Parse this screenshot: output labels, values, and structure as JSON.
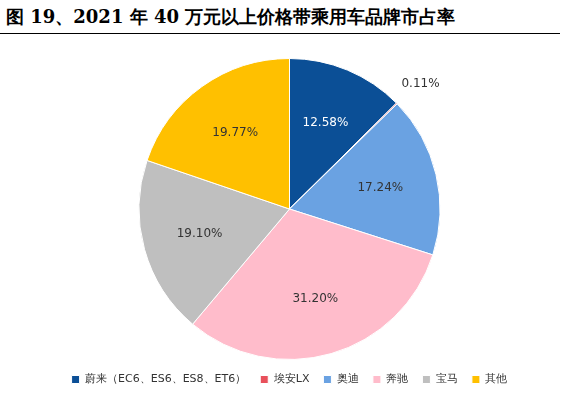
{
  "chart_data": {
    "type": "pie",
    "title": "图 19、2021 年 40 万元以上价格带乘用车品牌市占率",
    "categories": [
      "蔚来（EC6、ES6、ES8、ET6）",
      "埃安LX",
      "奥迪",
      "奔驰",
      "宝马",
      "其他"
    ],
    "values": [
      12.58,
      0.11,
      17.24,
      31.2,
      19.1,
      19.77
    ],
    "value_labels": [
      "12.58%",
      "0.11%",
      "17.24%",
      "31.20%",
      "19.10%",
      "19.77%"
    ],
    "colors": [
      "#0b4f96",
      "#e8505b",
      "#6aa2e2",
      "#ffbccb",
      "#bfbfbf",
      "#ffc000"
    ],
    "data_labels": true,
    "legend": "bottom"
  }
}
